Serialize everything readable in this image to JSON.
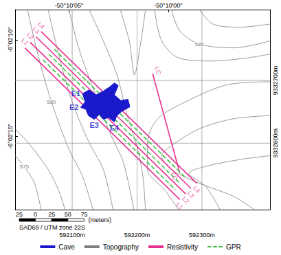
{
  "chart_data": {
    "type": "map",
    "xlim": [
      592012,
      592405
    ],
    "xticks": [
      {
        "value": 592100,
        "label": "592100m"
      },
      {
        "value": 592200,
        "label": "592200m"
      },
      {
        "value": 592300,
        "label": "592300m"
      }
    ],
    "ylim": [
      9332494,
      9332813
    ],
    "yticks": [
      {
        "value": 9332600,
        "label": "9332600m"
      },
      {
        "value": 9332700,
        "label": "9332700m"
      }
    ],
    "x2lim": [
      592012,
      592405
    ],
    "x2ticks": [
      {
        "value": 592095,
        "label": "-50°10'05\""
      },
      {
        "value": 592248,
        "label": "-50°10'00\""
      }
    ],
    "y2lim": [
      9332494,
      9332813
    ],
    "y2ticks": [
      {
        "value": 9332611,
        "label": "-6°02'15\""
      },
      {
        "value": 9332765,
        "label": "-6°02'10\""
      }
    ],
    "grid": true,
    "legend": "bottom",
    "series": [
      {
        "name": "Cave",
        "type": "polygon",
        "color": "#1a1acc",
        "values": [
          [
            592116,
            9332679
          ],
          [
            592126,
            9332685
          ],
          [
            592137,
            9332677
          ],
          [
            592148,
            9332683
          ],
          [
            592158,
            9332690
          ],
          [
            592165,
            9332696
          ],
          [
            592171,
            9332692
          ],
          [
            592165,
            9332677
          ],
          [
            592175,
            9332668
          ],
          [
            592186,
            9332670
          ],
          [
            592189,
            9332658
          ],
          [
            592177,
            9332651
          ],
          [
            592169,
            9332644
          ],
          [
            592165,
            9332634
          ],
          [
            592156,
            9332641
          ],
          [
            592148,
            9332638
          ],
          [
            592142,
            9332646
          ],
          [
            592134,
            9332638
          ],
          [
            592125,
            9332644
          ],
          [
            592121,
            9332654
          ],
          [
            592113,
            9332657
          ],
          [
            592120,
            9332666
          ]
        ]
      },
      {
        "name": "Topography",
        "type": "line",
        "color": "#7f7f7f",
        "line_style": "solid",
        "lines": [
          {
            "label": "575",
            "values": [
              [
                592012,
                9332580
              ],
              [
                592026,
                9332563
              ],
              [
                592042,
                9332536
              ],
              [
                592052,
                9332494
              ]
            ]
          },
          {
            "values": [
              [
                592012,
                9332623
              ],
              [
                592036,
                9332596
              ],
              [
                592063,
                9332558
              ],
              [
                592079,
                9332525
              ],
              [
                592089,
                9332494
              ]
            ]
          },
          {
            "label": "580",
            "values": [
              [
                592031,
                9332813
              ],
              [
                592047,
                9332742
              ],
              [
                592068,
                9332666
              ],
              [
                592095,
                9332590
              ],
              [
                592116,
                9332547
              ],
              [
                592132,
                9332494
              ]
            ]
          },
          {
            "values": [
              [
                592063,
                9332813
              ],
              [
                592079,
                9332742
              ],
              [
                592100,
                9332666
              ],
              [
                592126,
                9332601
              ],
              [
                592148,
                9332558
              ],
              [
                592163,
                9332494
              ]
            ]
          },
          {
            "values": [
              [
                592095,
                9332813
              ],
              [
                592110,
                9332752
              ],
              [
                592132,
                9332688
              ],
              [
                592158,
                9332617
              ],
              [
                592179,
                9332569
              ],
              [
                592195,
                9332494
              ]
            ]
          },
          {
            "values": [
              [
                592126,
                9332813
              ],
              [
                592148,
                9332763
              ],
              [
                592169,
                9332709
              ],
              [
                592185,
                9332644
              ],
              [
                592201,
                9332590
              ],
              [
                592209,
                9332547
              ],
              [
                592213,
                9332494
              ]
            ]
          },
          {
            "values": [
              [
                592174,
                9332813
              ],
              [
                592188,
                9332763
              ],
              [
                592196,
                9332709
              ],
              [
                592206,
                9332763
              ],
              [
                592213,
                9332813
              ]
            ]
          },
          {
            "values": [
              [
                592227,
                9332813
              ],
              [
                592238,
                9332763
              ],
              [
                592264,
                9332736
              ],
              [
                592317,
                9332731
              ],
              [
                592370,
                9332736
              ],
              [
                592405,
                9332742
              ]
            ]
          },
          {
            "label": "585",
            "values": [
              [
                592253,
                9332813
              ],
              [
                592266,
                9332779
              ],
              [
                592296,
                9332758
              ],
              [
                592349,
                9332752
              ],
              [
                592405,
                9332763
              ]
            ]
          },
          {
            "values": [
              [
                592296,
                9332813
              ],
              [
                592317,
                9332790
              ],
              [
                592359,
                9332785
              ],
              [
                592405,
                9332790
              ]
            ]
          },
          {
            "values": [
              [
                592405,
                9332644
              ],
              [
                592349,
                9332639
              ],
              [
                592296,
                9332623
              ],
              [
                592253,
                9332596
              ],
              [
                592238,
                9332580
              ],
              [
                592253,
                9332558
              ],
              [
                592296,
                9332536
              ],
              [
                592349,
                9332515
              ],
              [
                592381,
                9332494
              ]
            ]
          },
          {
            "values": [
              [
                592405,
                9332698
              ],
              [
                592338,
                9332693
              ],
              [
                592275,
                9332666
              ],
              [
                592232,
                9332639
              ],
              [
                592216,
                9332601
              ],
              [
                592216,
                9332558
              ],
              [
                592243,
                9332525
              ],
              [
                592264,
                9332494
              ]
            ]
          },
          {
            "values": [
              [
                592405,
                9332580
              ],
              [
                592359,
                9332574
              ],
              [
                592306,
                9332563
              ],
              [
                592280,
                9332552
              ],
              [
                592306,
                9332531
              ],
              [
                592328,
                9332494
              ]
            ]
          }
        ]
      },
      {
        "name": "Resistivity",
        "type": "line",
        "color": "#e8308f",
        "line_style": "solid",
        "lines": [
          {
            "label": "L1",
            "values": [
              [
                592027,
                9332752
              ],
              [
                592266,
                9332510
              ]
            ]
          },
          {
            "label": "L2",
            "values": [
              [
                592035,
                9332761
              ],
              [
                592275,
                9332519
              ]
            ]
          },
          {
            "label": "L3",
            "values": [
              [
                592044,
                9332770
              ],
              [
                592283,
                9332528
              ]
            ]
          },
          {
            "label": "L4",
            "values": [
              [
                592052,
                9332778
              ],
              [
                592292,
                9332536
              ]
            ]
          },
          {
            "label": "LC",
            "values": [
              [
                592224,
                9332711
              ],
              [
                592266,
                9332552
              ]
            ]
          }
        ]
      },
      {
        "name": "GPR",
        "type": "line",
        "color": "#3fbf3f",
        "line_style": "dashed",
        "lines": [
          {
            "values": [
              [
                592055,
                9332733
              ],
              [
                592259,
                9332526
              ]
            ]
          },
          {
            "values": [
              [
                592064,
                9332742
              ],
              [
                592267,
                9332535
              ]
            ]
          },
          {
            "values": [
              [
                592072,
                9332750
              ],
              [
                592276,
                9332544
              ]
            ]
          }
        ]
      }
    ],
    "annotations": [
      {
        "text": "E1",
        "x": 592116,
        "y": 9332679
      },
      {
        "text": "E2",
        "x": 592113,
        "y": 9332657
      },
      {
        "text": "E3",
        "x": 592134,
        "y": 9332638
      },
      {
        "text": "E4",
        "x": 592165,
        "y": 9332634
      }
    ],
    "scale_bar": {
      "ticks": [
        {
          "value": -25,
          "label": "25"
        },
        0,
        25,
        50,
        75
      ],
      "unit_label": "(meters)"
    },
    "projection": "SAD69 / UTM zone 22S"
  }
}
